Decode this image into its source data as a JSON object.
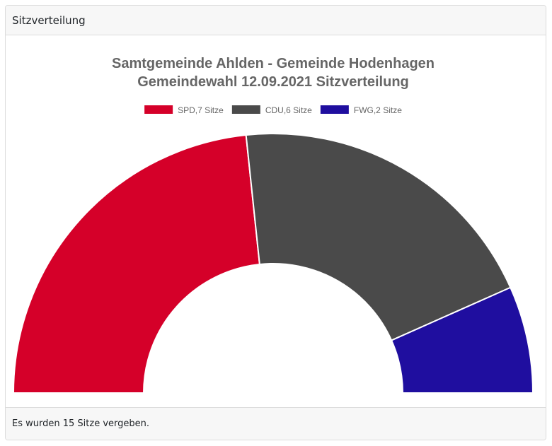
{
  "panel": {
    "header": "Sitzverteilung",
    "footer": "Es wurden 15 Sitze vergeben."
  },
  "chart_data": {
    "type": "pie",
    "variant": "semicircle-donut",
    "title_lines": [
      "Samtgemeinde Ahlden - Gemeinde Hodenhagen",
      "Gemeindewahl 12.09.2021 Sitzverteilung"
    ],
    "legend_position": "top-center",
    "series": [
      {
        "name": "SPD,7 Sitze",
        "party": "SPD",
        "value": 7,
        "color": "#d50029"
      },
      {
        "name": "CDU,6 Sitze",
        "party": "CDU",
        "value": 6,
        "color": "#4a4a4a"
      },
      {
        "name": "FWG,2 Sitze",
        "party": "FWG",
        "value": 2,
        "color": "#1f0e9f"
      }
    ],
    "total": 15
  }
}
